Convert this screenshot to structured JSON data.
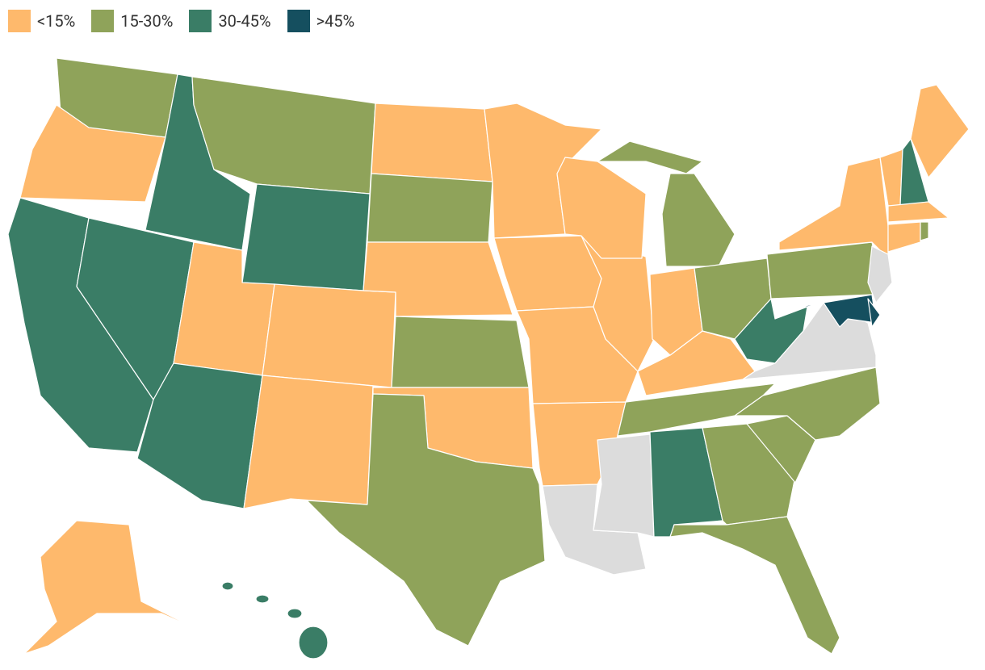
{
  "legend": {
    "items": [
      {
        "label": "<15%",
        "color": "#feb96c"
      },
      {
        "label": "15-30%",
        "color": "#8fa35a"
      },
      {
        "label": "30-45%",
        "color": "#3a7d66"
      },
      {
        "label": ">45%",
        "color": "#154f5f"
      }
    ]
  }
}
